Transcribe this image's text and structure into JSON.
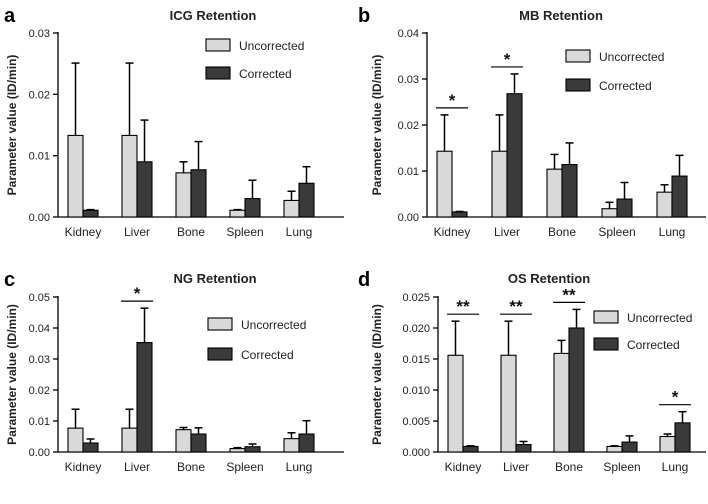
{
  "figure": {
    "legend": {
      "series_a": "Uncorrected",
      "series_b": "Corrected"
    },
    "ylabel": "Parameter value (ID/min)",
    "colors": {
      "uncorrected": "#d9d9d9",
      "corrected": "#3a3a3a",
      "edge": "#000000"
    }
  },
  "chart_data": [
    {
      "id": "a",
      "panel_letter": "a",
      "type": "bar",
      "title": "ICG Retention",
      "ylabel": "Parameter value (ID/min)",
      "ylim": [
        0,
        0.03
      ],
      "yticks": [
        0,
        0.01,
        0.02,
        0.03
      ],
      "ytick_labels": [
        "0.00",
        "0.01",
        "0.02",
        "0.03"
      ],
      "categories": [
        "Kidney",
        "Liver",
        "Bone",
        "Spleen",
        "Lung"
      ],
      "legend_position": "top-right",
      "series": [
        {
          "name": "Uncorrected",
          "values": [
            0.0133,
            0.0133,
            0.0072,
            0.0011,
            0.0027
          ],
          "errors": [
            0.0118,
            0.0118,
            0.0018,
            0.0001,
            0.0015
          ]
        },
        {
          "name": "Corrected",
          "values": [
            0.0011,
            0.009,
            0.0077,
            0.003,
            0.0055
          ],
          "errors": [
            0.0001,
            0.0068,
            0.0046,
            0.003,
            0.0027
          ]
        }
      ],
      "significance": []
    },
    {
      "id": "b",
      "panel_letter": "b",
      "type": "bar",
      "title": "MB Retention",
      "ylabel": "Parameter value (ID/min)",
      "ylim": [
        0,
        0.04
      ],
      "yticks": [
        0,
        0.01,
        0.02,
        0.03,
        0.04
      ],
      "ytick_labels": [
        "0.00",
        "0.01",
        "0.02",
        "0.03",
        "0.04"
      ],
      "categories": [
        "Kidney",
        "Liver",
        "Bone",
        "Spleen",
        "Lung"
      ],
      "legend_position": "top-right",
      "series": [
        {
          "name": "Uncorrected",
          "values": [
            0.0143,
            0.0143,
            0.0104,
            0.0018,
            0.0054
          ],
          "errors": [
            0.0079,
            0.0079,
            0.0032,
            0.0014,
            0.0016
          ]
        },
        {
          "name": "Corrected",
          "values": [
            0.0011,
            0.0268,
            0.0114,
            0.0039,
            0.0089
          ],
          "errors": [
            0.0001,
            0.0043,
            0.0047,
            0.0036,
            0.0045
          ]
        }
      ],
      "significance": [
        {
          "category": 0,
          "label": "*"
        },
        {
          "category": 1,
          "label": "*"
        }
      ]
    },
    {
      "id": "c",
      "panel_letter": "c",
      "type": "bar",
      "title": "NG Retention",
      "ylabel": "Parameter value (ID/min)",
      "ylim": [
        0,
        0.05
      ],
      "yticks": [
        0,
        0.01,
        0.02,
        0.03,
        0.04,
        0.05
      ],
      "ytick_labels": [
        "0.00",
        "0.01",
        "0.02",
        "0.03",
        "0.04",
        "0.05"
      ],
      "categories": [
        "Kidney",
        "Liver",
        "Bone",
        "Spleen",
        "Lung"
      ],
      "legend_position": "top-right",
      "series": [
        {
          "name": "Uncorrected",
          "values": [
            0.0077,
            0.0077,
            0.0072,
            0.0011,
            0.0043
          ],
          "errors": [
            0.0061,
            0.0061,
            0.0007,
            0.0003,
            0.0019
          ]
        },
        {
          "name": "Corrected",
          "values": [
            0.0029,
            0.0353,
            0.0058,
            0.0017,
            0.0058
          ],
          "errors": [
            0.0013,
            0.0111,
            0.002,
            0.0009,
            0.0043
          ]
        }
      ],
      "significance": [
        {
          "category": 1,
          "label": "*"
        }
      ]
    },
    {
      "id": "d",
      "panel_letter": "d",
      "type": "bar",
      "title": "OS Retention",
      "ylabel": "Parameter value (ID/min)",
      "ylim": [
        0,
        0.025
      ],
      "yticks": [
        0,
        0.005,
        0.01,
        0.015,
        0.02,
        0.025
      ],
      "ytick_labels": [
        "0.000",
        "0.005",
        "0.010",
        "0.015",
        "0.020",
        "0.025"
      ],
      "categories": [
        "Kidney",
        "Liver",
        "Bone",
        "Spleen",
        "Lung"
      ],
      "legend_position": "top-right",
      "series": [
        {
          "name": "Uncorrected",
          "values": [
            0.0156,
            0.0156,
            0.0159,
            0.0009,
            0.0025
          ],
          "errors": [
            0.0055,
            0.0055,
            0.0021,
            0.0001,
            0.0004
          ]
        },
        {
          "name": "Corrected",
          "values": [
            0.0009,
            0.0012,
            0.02,
            0.0016,
            0.0047
          ],
          "errors": [
            0.0001,
            0.0005,
            0.003,
            0.001,
            0.0018
          ]
        }
      ],
      "significance": [
        {
          "category": 0,
          "label": "**"
        },
        {
          "category": 1,
          "label": "**"
        },
        {
          "category": 2,
          "label": "**"
        },
        {
          "category": 4,
          "label": "*"
        }
      ]
    }
  ]
}
